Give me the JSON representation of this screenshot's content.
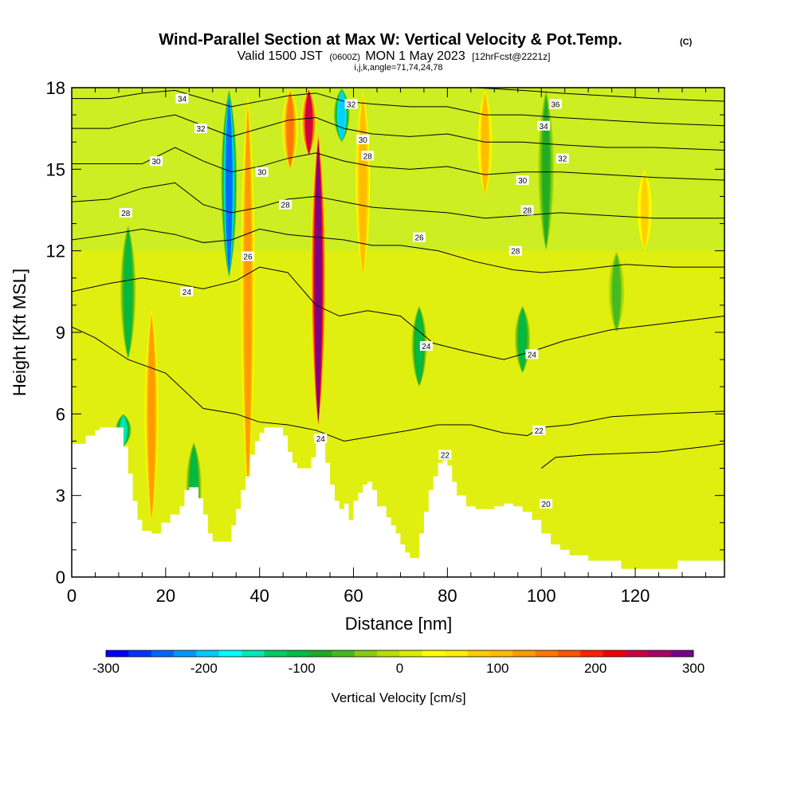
{
  "title": {
    "main": "Wind-Parallel Section at Max W: Vertical Velocity & Pot.Temp.",
    "corner": "(C)",
    "valid_a": "Valid 1500 JST",
    "valid_small": "(0600Z)",
    "valid_b": "MON 1 May 2023",
    "forecast": "[12hrFcst@2221z]",
    "indices": "i,j,k,angle=71,74,24,78"
  },
  "chart_data": {
    "type": "contour-section",
    "xlabel": "Distance [nm]",
    "ylabel": "Height [Kft MSL]",
    "xlim": [
      0,
      139
    ],
    "ylim": [
      0,
      18
    ],
    "x_ticks": [
      0,
      20,
      40,
      60,
      80,
      100,
      120
    ],
    "y_ticks": [
      0,
      3,
      6,
      9,
      12,
      15,
      18
    ],
    "colorbar": {
      "label": "Vertical Velocity [cm/s]",
      "range": [
        -300,
        300
      ],
      "tick_values": [
        -300,
        -200,
        -100,
        0,
        100,
        200,
        300
      ],
      "colors": [
        "#0000ff",
        "#0033ff",
        "#0066ff",
        "#0099ff",
        "#00ccff",
        "#00ffff",
        "#00e8b8",
        "#00cc66",
        "#00bb44",
        "#22aa22",
        "#44bb22",
        "#88cc11",
        "#bbdd00",
        "#ddee00",
        "#ffff00",
        "#ffee00",
        "#ffcc00",
        "#ffbb00",
        "#ff9900",
        "#ff7700",
        "#ff5500",
        "#ff2200",
        "#ee0000",
        "#cc0044",
        "#aa0066",
        "#770088"
      ]
    },
    "terrain_kft": [
      [
        0,
        4.9
      ],
      [
        2,
        4.9
      ],
      [
        3,
        5.2
      ],
      [
        5,
        5.4
      ],
      [
        6,
        5.5
      ],
      [
        10,
        5.5
      ],
      [
        11,
        4.8
      ],
      [
        12,
        3.8
      ],
      [
        13,
        2.8
      ],
      [
        14,
        2.1
      ],
      [
        15,
        1.7
      ],
      [
        17,
        1.6
      ],
      [
        19,
        2.0
      ],
      [
        21,
        2.3
      ],
      [
        23,
        2.6
      ],
      [
        24,
        3.2
      ],
      [
        25,
        3.3
      ],
      [
        27,
        2.9
      ],
      [
        28,
        2.3
      ],
      [
        29,
        1.6
      ],
      [
        30,
        1.3
      ],
      [
        33,
        1.3
      ],
      [
        34,
        1.9
      ],
      [
        35,
        2.5
      ],
      [
        36,
        3.2
      ],
      [
        37,
        3.7
      ],
      [
        38,
        4.5
      ],
      [
        39,
        5.0
      ],
      [
        40,
        5.3
      ],
      [
        41,
        5.5
      ],
      [
        44,
        5.5
      ],
      [
        45,
        5.2
      ],
      [
        46,
        4.6
      ],
      [
        47,
        4.2
      ],
      [
        48,
        4.0
      ],
      [
        50,
        4.0
      ],
      [
        51,
        4.4
      ],
      [
        52,
        5.2
      ],
      [
        53,
        5.3
      ],
      [
        54,
        4.2
      ],
      [
        55,
        3.4
      ],
      [
        56,
        2.8
      ],
      [
        57,
        2.5
      ],
      [
        58,
        2.7
      ],
      [
        59,
        2.1
      ],
      [
        60,
        2.8
      ],
      [
        61,
        3.1
      ],
      [
        62,
        3.4
      ],
      [
        63,
        3.5
      ],
      [
        64,
        3.2
      ],
      [
        65,
        2.6
      ],
      [
        67,
        2.2
      ],
      [
        68,
        1.9
      ],
      [
        69,
        1.6
      ],
      [
        70,
        1.2
      ],
      [
        71,
        0.9
      ],
      [
        72,
        0.7
      ],
      [
        73,
        0.7
      ],
      [
        74,
        1.6
      ],
      [
        75,
        2.4
      ],
      [
        76,
        3.2
      ],
      [
        77,
        3.7
      ],
      [
        78,
        4.2
      ],
      [
        79,
        4.3
      ],
      [
        80,
        4.1
      ],
      [
        81,
        3.5
      ],
      [
        82,
        3.0
      ],
      [
        84,
        2.6
      ],
      [
        86,
        2.5
      ],
      [
        90,
        2.6
      ],
      [
        92,
        2.7
      ],
      [
        94,
        2.6
      ],
      [
        96,
        2.4
      ],
      [
        98,
        2.1
      ],
      [
        100,
        1.6
      ],
      [
        102,
        1.2
      ],
      [
        104,
        1.0
      ],
      [
        106,
        0.8
      ],
      [
        110,
        0.6
      ],
      [
        115,
        0.6
      ],
      [
        117,
        0.3
      ],
      [
        122,
        0.3
      ],
      [
        126,
        0.3
      ],
      [
        129,
        0.6
      ],
      [
        139,
        0.6
      ]
    ],
    "updrafts_cm_s": [
      {
        "x": 52.5,
        "y_bottom": 5.5,
        "y_top": 16.5,
        "peak": 300
      },
      {
        "x": 50.5,
        "y_bottom": 15.5,
        "y_top": 18,
        "peak": 240
      },
      {
        "x": 46.5,
        "y_bottom": 15,
        "y_top": 18,
        "peak": 140
      },
      {
        "x": 37.5,
        "y_bottom": 3,
        "y_top": 18,
        "peak": 120
      },
      {
        "x": 62,
        "y_bottom": 11,
        "y_top": 18,
        "peak": 110
      },
      {
        "x": 88,
        "y_bottom": 14,
        "y_top": 18,
        "peak": 100
      },
      {
        "x": 17,
        "y_bottom": 2,
        "y_top": 10,
        "peak": 120
      },
      {
        "x": 122,
        "y_bottom": 12,
        "y_top": 15,
        "peak": 80
      }
    ],
    "downdrafts_cm_s": [
      {
        "x": 33.5,
        "y_bottom": 11,
        "y_top": 18,
        "peak": -240
      },
      {
        "x": 57.5,
        "y_bottom": 16,
        "y_top": 18,
        "peak": -200
      },
      {
        "x": 11,
        "y_bottom": 4.8,
        "y_top": 6,
        "peak": -160
      },
      {
        "x": 12,
        "y_bottom": 8,
        "y_top": 13,
        "peak": -100
      },
      {
        "x": 26,
        "y_bottom": 1.5,
        "y_top": 5,
        "peak": -100
      },
      {
        "x": 74,
        "y_bottom": 7,
        "y_top": 10,
        "peak": -110
      },
      {
        "x": 96,
        "y_bottom": 7.5,
        "y_top": 10,
        "peak": -100
      },
      {
        "x": 101,
        "y_bottom": 12,
        "y_top": 18,
        "peak": -70
      },
      {
        "x": 116,
        "y_bottom": 9,
        "y_top": 12,
        "peak": -60
      }
    ],
    "theta_contours": [
      {
        "value": "20",
        "points": [
          [
            100,
            4.0
          ],
          [
            103,
            4.4
          ],
          [
            110,
            4.5
          ],
          [
            125,
            4.6
          ],
          [
            135,
            4.8
          ],
          [
            139,
            4.9
          ]
        ]
      },
      {
        "value": "22",
        "points": [
          [
            0,
            9.2
          ],
          [
            5,
            8.8
          ],
          [
            12,
            8.0
          ],
          [
            20,
            7.5
          ],
          [
            28,
            6.2
          ],
          [
            35,
            6.0
          ],
          [
            40,
            5.7
          ],
          [
            46,
            5.6
          ],
          [
            52,
            5.4
          ],
          [
            58,
            5.0
          ],
          [
            65,
            5.2
          ],
          [
            72,
            5.4
          ],
          [
            78,
            5.6
          ],
          [
            85,
            5.6
          ],
          [
            92,
            5.3
          ],
          [
            97,
            5.2
          ],
          [
            100,
            5.5
          ],
          [
            106,
            5.6
          ],
          [
            115,
            5.9
          ],
          [
            125,
            6.0
          ],
          [
            139,
            6.1
          ]
        ]
      },
      {
        "value": "24",
        "points": [
          [
            0,
            10.5
          ],
          [
            8,
            10.8
          ],
          [
            15,
            11.0
          ],
          [
            22,
            10.8
          ],
          [
            28,
            10.6
          ],
          [
            35,
            10.9
          ],
          [
            40,
            11.4
          ],
          [
            46,
            11.2
          ],
          [
            52,
            10.0
          ],
          [
            57,
            9.6
          ],
          [
            63,
            9.8
          ],
          [
            70,
            9.6
          ],
          [
            77,
            8.6
          ],
          [
            84,
            8.3
          ],
          [
            92,
            8.0
          ],
          [
            98,
            8.3
          ],
          [
            105,
            8.7
          ],
          [
            115,
            9.1
          ],
          [
            125,
            9.3
          ],
          [
            139,
            9.6
          ]
        ]
      },
      {
        "value": "26",
        "points": [
          [
            0,
            12.4
          ],
          [
            8,
            12.6
          ],
          [
            15,
            12.8
          ],
          [
            22,
            12.6
          ],
          [
            28,
            12.3
          ],
          [
            34,
            12.4
          ],
          [
            40,
            12.8
          ],
          [
            46,
            12.6
          ],
          [
            52,
            12.5
          ],
          [
            58,
            12.4
          ],
          [
            64,
            12.2
          ],
          [
            70,
            12.2
          ],
          [
            78,
            12.0
          ],
          [
            86,
            11.6
          ],
          [
            94,
            11.3
          ],
          [
            100,
            11.2
          ],
          [
            108,
            11.3
          ],
          [
            118,
            11.5
          ],
          [
            128,
            11.4
          ],
          [
            139,
            11.4
          ]
        ]
      },
      {
        "value": "28",
        "points": [
          [
            0,
            13.8
          ],
          [
            8,
            13.9
          ],
          [
            15,
            14.3
          ],
          [
            22,
            14.5
          ],
          [
            28,
            13.7
          ],
          [
            34,
            13.4
          ],
          [
            40,
            13.6
          ],
          [
            46,
            13.9
          ],
          [
            52,
            14.0
          ],
          [
            58,
            13.8
          ],
          [
            64,
            13.6
          ],
          [
            72,
            13.5
          ],
          [
            80,
            13.4
          ],
          [
            88,
            13.2
          ],
          [
            96,
            13.3
          ],
          [
            104,
            13.4
          ],
          [
            114,
            13.3
          ],
          [
            124,
            13.2
          ],
          [
            139,
            13.2
          ]
        ]
      },
      {
        "value": "30",
        "points": [
          [
            0,
            15.2
          ],
          [
            8,
            15.2
          ],
          [
            15,
            15.2
          ],
          [
            22,
            15.8
          ],
          [
            28,
            15.3
          ],
          [
            34,
            14.9
          ],
          [
            40,
            15.1
          ],
          [
            46,
            15.4
          ],
          [
            52,
            15.6
          ],
          [
            58,
            15.3
          ],
          [
            64,
            15.1
          ],
          [
            72,
            15.0
          ],
          [
            80,
            15.1
          ],
          [
            88,
            14.8
          ],
          [
            96,
            14.9
          ],
          [
            104,
            14.9
          ],
          [
            114,
            14.8
          ],
          [
            124,
            14.7
          ],
          [
            139,
            14.6
          ]
        ]
      },
      {
        "value": "32",
        "points": [
          [
            0,
            16.5
          ],
          [
            8,
            16.5
          ],
          [
            15,
            16.8
          ],
          [
            22,
            17.0
          ],
          [
            28,
            16.6
          ],
          [
            34,
            16.2
          ],
          [
            40,
            16.5
          ],
          [
            46,
            16.8
          ],
          [
            52,
            16.9
          ],
          [
            58,
            16.5
          ],
          [
            64,
            16.3
          ],
          [
            72,
            16.2
          ],
          [
            80,
            16.3
          ],
          [
            88,
            16.0
          ],
          [
            96,
            16.0
          ],
          [
            104,
            15.9
          ],
          [
            114,
            15.8
          ],
          [
            124,
            15.8
          ],
          [
            139,
            15.7
          ]
        ]
      },
      {
        "value": "34",
        "points": [
          [
            0,
            17.6
          ],
          [
            8,
            17.6
          ],
          [
            15,
            17.8
          ],
          [
            22,
            17.9
          ],
          [
            28,
            17.6
          ],
          [
            34,
            17.3
          ],
          [
            40,
            17.5
          ],
          [
            46,
            17.7
          ],
          [
            52,
            17.8
          ],
          [
            58,
            17.5
          ],
          [
            64,
            17.4
          ],
          [
            72,
            17.3
          ],
          [
            80,
            17.3
          ],
          [
            88,
            17.0
          ],
          [
            96,
            17.0
          ],
          [
            104,
            16.9
          ],
          [
            114,
            16.8
          ],
          [
            124,
            16.7
          ],
          [
            139,
            16.6
          ]
        ]
      },
      {
        "value": "36",
        "points": [
          [
            86,
            18.0
          ],
          [
            96,
            17.9
          ],
          [
            104,
            17.8
          ],
          [
            114,
            17.7
          ],
          [
            124,
            17.6
          ],
          [
            139,
            17.5
          ]
        ]
      }
    ],
    "contour_labels": [
      {
        "text": "34",
        "x": 23.5,
        "y": 17.6
      },
      {
        "text": "32",
        "x": 27.5,
        "y": 16.5
      },
      {
        "text": "30",
        "x": 18.0,
        "y": 15.3
      },
      {
        "text": "28",
        "x": 11.5,
        "y": 13.4
      },
      {
        "text": "24",
        "x": 24.5,
        "y": 10.5
      },
      {
        "text": "26",
        "x": 37.5,
        "y": 11.8
      },
      {
        "text": "30",
        "x": 40.5,
        "y": 14.9
      },
      {
        "text": "28",
        "x": 45.5,
        "y": 13.7
      },
      {
        "text": "32",
        "x": 59.5,
        "y": 17.4
      },
      {
        "text": "30",
        "x": 62.0,
        "y": 16.1
      },
      {
        "text": "28",
        "x": 63.0,
        "y": 15.5
      },
      {
        "text": "26",
        "x": 74.0,
        "y": 12.5
      },
      {
        "text": "24",
        "x": 75.5,
        "y": 8.5
      },
      {
        "text": "24",
        "x": 53.0,
        "y": 5.1
      },
      {
        "text": "22",
        "x": 79.5,
        "y": 4.5
      },
      {
        "text": "20",
        "x": 101.0,
        "y": 2.7
      },
      {
        "text": "22",
        "x": 99.5,
        "y": 5.4
      },
      {
        "text": "24",
        "x": 98.0,
        "y": 8.2
      },
      {
        "text": "28",
        "x": 94.5,
        "y": 12.0
      },
      {
        "text": "28",
        "x": 97.0,
        "y": 13.5
      },
      {
        "text": "30",
        "x": 96.0,
        "y": 14.6
      },
      {
        "text": "32",
        "x": 104.5,
        "y": 15.4
      },
      {
        "text": "34",
        "x": 100.5,
        "y": 16.6
      },
      {
        "text": "36",
        "x": 103.0,
        "y": 17.4
      }
    ]
  }
}
